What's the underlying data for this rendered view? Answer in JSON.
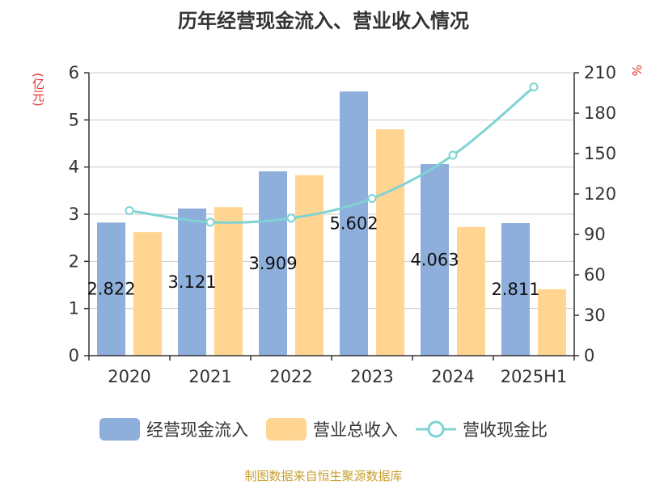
{
  "title": "历年经营现金流入、营业收入情况",
  "left_unit": "(亿元)",
  "right_unit": "%",
  "source": "制图数据来自恒生聚源数据库",
  "colors": {
    "cash_inflow": "#8eaedb",
    "revenue": "#ffd591",
    "ratio_line": "#7fd3d3",
    "axis": "#333333",
    "grid": "#cccccc"
  },
  "legend": [
    {
      "label": "经营现金流入",
      "type": "bar",
      "color_key": "cash_inflow"
    },
    {
      "label": "营业总收入",
      "type": "bar",
      "color_key": "revenue"
    },
    {
      "label": "营收现金比",
      "type": "line",
      "color_key": "ratio_line"
    }
  ],
  "chart_data": {
    "type": "bar",
    "categories": [
      "2020",
      "2021",
      "2022",
      "2023",
      "2024",
      "2025H1"
    ],
    "series": [
      {
        "name": "经营现金流入",
        "type": "bar",
        "axis": "left",
        "values": [
          2.822,
          3.121,
          3.909,
          5.602,
          4.063,
          2.811
        ],
        "labels": [
          "2.822",
          "3.121",
          "3.909",
          "5.602",
          "4.063",
          "2.811"
        ]
      },
      {
        "name": "营业总收入",
        "type": "bar",
        "axis": "left",
        "values": [
          2.62,
          3.15,
          3.83,
          4.8,
          2.73,
          1.41
        ]
      },
      {
        "name": "营收现金比",
        "type": "line",
        "axis": "right",
        "values": [
          107.7,
          99.1,
          102.1,
          116.7,
          148.8,
          199.4
        ]
      }
    ],
    "y_left": {
      "min": 0,
      "max": 6,
      "ticks": [
        "0",
        "1",
        "2",
        "3",
        "4",
        "5",
        "6"
      ]
    },
    "y_right": {
      "min": 0,
      "max": 210,
      "ticks": [
        "0",
        "30",
        "60",
        "90",
        "120",
        "150",
        "180",
        "210"
      ]
    },
    "grid": true,
    "legend_position": "bottom"
  }
}
